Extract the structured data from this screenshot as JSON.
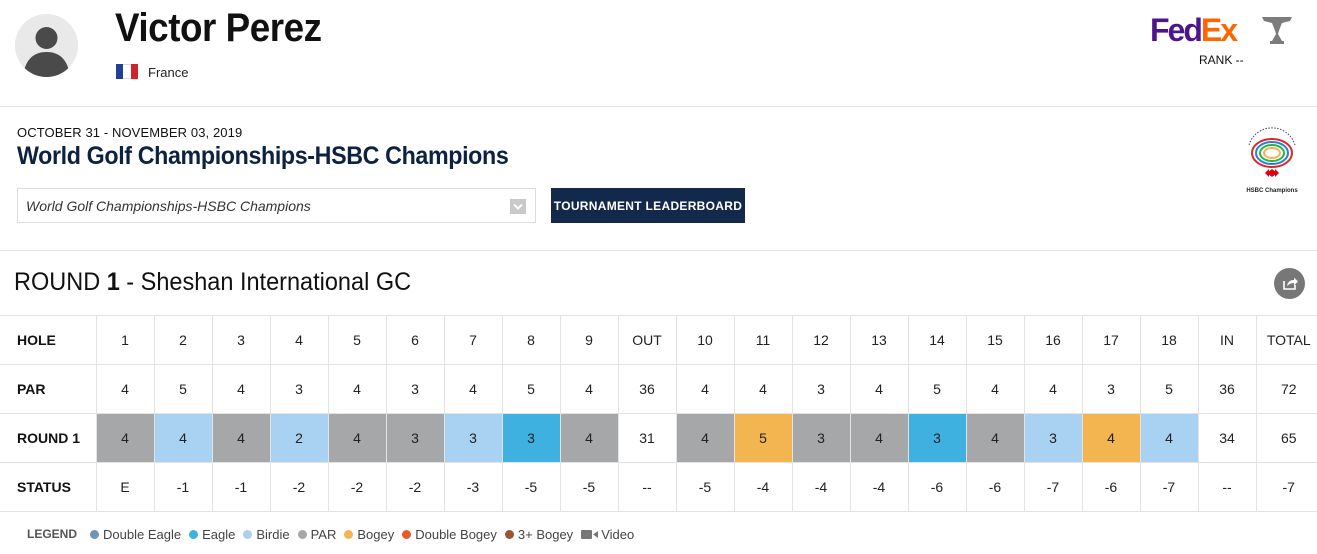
{
  "player": {
    "name": "Victor Perez",
    "country": "France",
    "flag_colors": [
      "#1f3f99",
      "#ffffff",
      "#d1232a"
    ]
  },
  "fedex": {
    "brand_part1": "Fed",
    "brand_part2": "Ex",
    "rank_label": "RANK --",
    "colors": {
      "fed": "#4d148c",
      "ex": "#ff6600"
    }
  },
  "tournament": {
    "dates": "OCTOBER 31 - NOVEMBER 03, 2019",
    "name": "World Golf Championships-HSBC Champions",
    "select_value": "World Golf Championships-HSBC Champions",
    "leaderboard_button": "TOURNAMENT LEADERBOARD",
    "logo_caption": "HSBC Champions"
  },
  "round": {
    "prefix": "ROUND ",
    "number": "1",
    "suffix": " - Sheshan International GC"
  },
  "scorecard": {
    "labels": {
      "hole": "HOLE",
      "par": "PAR",
      "round": "ROUND 1",
      "status": "STATUS"
    },
    "columns": [
      "1",
      "2",
      "3",
      "4",
      "5",
      "6",
      "7",
      "8",
      "9",
      "OUT",
      "10",
      "11",
      "12",
      "13",
      "14",
      "15",
      "16",
      "17",
      "18",
      "IN",
      "TOTAL"
    ],
    "par": [
      "4",
      "5",
      "4",
      "3",
      "4",
      "3",
      "4",
      "5",
      "4",
      "36",
      "4",
      "4",
      "3",
      "4",
      "5",
      "4",
      "4",
      "3",
      "5",
      "36",
      "72"
    ],
    "scores": [
      "4",
      "4",
      "4",
      "2",
      "4",
      "3",
      "3",
      "3",
      "4",
      "31",
      "4",
      "5",
      "3",
      "4",
      "3",
      "4",
      "3",
      "4",
      "4",
      "34",
      "65"
    ],
    "score_types": [
      "par",
      "birdie",
      "par",
      "birdie",
      "par",
      "par",
      "birdie",
      "eagle",
      "par",
      "",
      "par",
      "bogey",
      "par",
      "par",
      "eagle",
      "par",
      "birdie",
      "bogey",
      "birdie",
      "",
      ""
    ],
    "status": [
      "E",
      "-1",
      "-1",
      "-2",
      "-2",
      "-2",
      "-3",
      "-5",
      "-5",
      "--",
      "-5",
      "-4",
      "-4",
      "-4",
      "-6",
      "-6",
      "-7",
      "-6",
      "-7",
      "--",
      "-7"
    ]
  },
  "score_colors": {
    "par": "#a5a7a9",
    "birdie": "#a9d1f2",
    "eagle": "#3fb1e0",
    "bogey": "#f2b54f"
  },
  "legend": {
    "title": "LEGEND",
    "items": [
      {
        "label": "Double Eagle",
        "color": "#6f95b5"
      },
      {
        "label": "Eagle",
        "color": "#3fb1e0"
      },
      {
        "label": "Birdie",
        "color": "#a9d1f2"
      },
      {
        "label": "PAR",
        "color": "#a5a7a9"
      },
      {
        "label": "Bogey",
        "color": "#f2b54f"
      },
      {
        "label": "Double Bogey",
        "color": "#e35d2b"
      },
      {
        "label": "3+ Bogey",
        "color": "#9a5532"
      }
    ],
    "video_label": "Video"
  }
}
